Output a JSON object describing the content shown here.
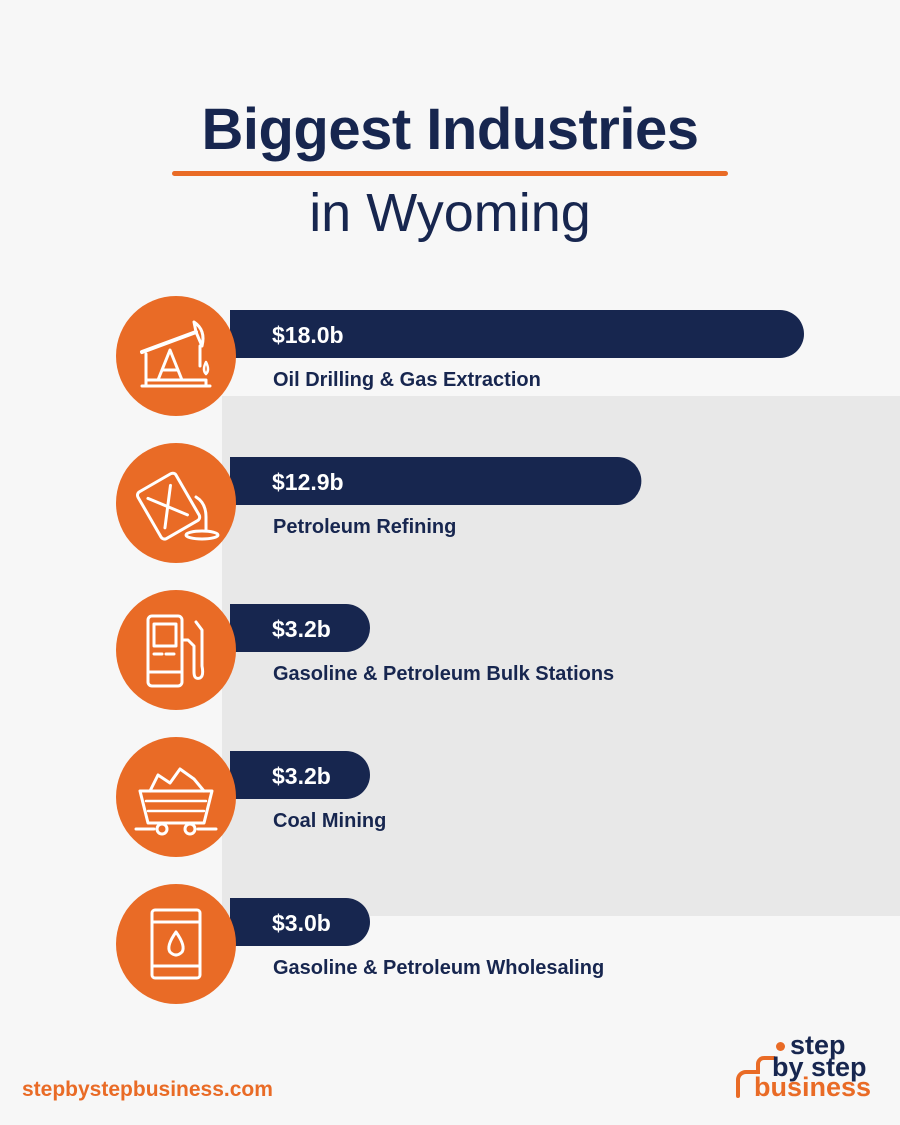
{
  "header": {
    "title_line1": "Biggest Industries",
    "title_line2": "in Wyoming"
  },
  "chart_data": {
    "type": "bar",
    "orientation": "horizontal",
    "categories": [
      "Oil Drilling & Gas Extraction",
      "Petroleum Refining",
      "Gasoline & Petroleum Bulk Stations",
      "Coal Mining",
      "Gasoline & Petroleum Wholesaling"
    ],
    "values": [
      18.0,
      12.9,
      3.2,
      3.2,
      3.0
    ],
    "value_labels": [
      "$18.0b",
      "$12.9b",
      "$3.2b",
      "$3.2b",
      "$3.0b"
    ],
    "icons": [
      "oil-pump-icon",
      "fuel-can-icon",
      "gas-pump-icon",
      "coal-cart-icon",
      "oil-barrel-icon"
    ],
    "colors": {
      "bar": "#17264f",
      "icon_circle": "#e96b26",
      "label_text": "#17264f"
    }
  },
  "footer": {
    "url": "stepbystepbusiness.com",
    "logo": {
      "line1": "step",
      "line2": "by step",
      "line3": "business"
    }
  }
}
